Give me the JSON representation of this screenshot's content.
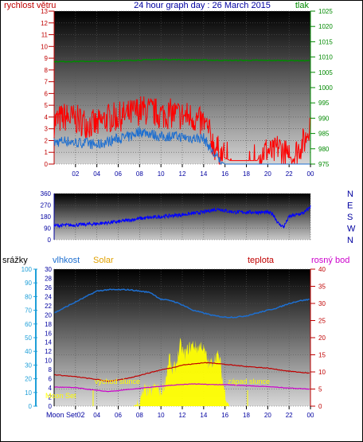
{
  "header": {
    "title": "24 hour graph day : 26 March 2015",
    "left_label": "rychlost větru",
    "right_label": "tlak"
  },
  "colors": {
    "wind_gust": "#ff0000",
    "wind_avg": "#1e6fd0",
    "pressure": "#008a00",
    "direction": "#0000ff",
    "rain": "#1e9fd8",
    "humidity": "#1e6fd0",
    "solar": "#ffff00",
    "temperature": "#c00000",
    "dewpoint": "#cc00cc",
    "moon": "#ffff00"
  },
  "chart_data": [
    {
      "type": "line",
      "id": "wind-pressure",
      "x_ticks": [
        "02",
        "04",
        "06",
        "08",
        "10",
        "12",
        "14",
        "16",
        "18",
        "20",
        "22",
        "00"
      ],
      "y_left": {
        "label": "rychlost větru",
        "range": [
          0,
          13
        ],
        "ticks": [
          "0",
          "1",
          "2",
          "3",
          "4",
          "5",
          "6",
          "7",
          "8",
          "9",
          "10",
          "11",
          "12",
          "13"
        ]
      },
      "y_right": {
        "label": "tlak",
        "range": [
          975,
          1025
        ],
        "ticks": [
          "975",
          "980",
          "985",
          "990",
          "995",
          "1000",
          "1005",
          "1010",
          "1015",
          "1020",
          "1025"
        ]
      },
      "x_range": [
        0,
        24
      ],
      "series": [
        {
          "name": "gust",
          "axis": "left",
          "values": [
            [
              0,
              3.6
            ],
            [
              1,
              4.0
            ],
            [
              2,
              3.8
            ],
            [
              3,
              3.5
            ],
            [
              4,
              3.3
            ],
            [
              5,
              3.9
            ],
            [
              6,
              4.0
            ],
            [
              7,
              4.2
            ],
            [
              8,
              4.6
            ],
            [
              9,
              4.5
            ],
            [
              10,
              4.2
            ],
            [
              11,
              4.3
            ],
            [
              12,
              4.1
            ],
            [
              13,
              4.0
            ],
            [
              13.5,
              3.6
            ],
            [
              14,
              3.5
            ],
            [
              14.5,
              2.7
            ],
            [
              15,
              1.5
            ],
            [
              15.5,
              1.0
            ],
            [
              16,
              0.5
            ],
            [
              16.5,
              0.3
            ],
            [
              17,
              0.3
            ],
            [
              18,
              0.3
            ],
            [
              19,
              0.3
            ],
            [
              19.5,
              1.0
            ],
            [
              20,
              1.2
            ],
            [
              20.5,
              0.8
            ],
            [
              21,
              1.5
            ],
            [
              21.5,
              1.0
            ],
            [
              22,
              0.5
            ],
            [
              22.5,
              0.8
            ],
            [
              23,
              1.5
            ],
            [
              23.5,
              2.0
            ],
            [
              24,
              3.8
            ]
          ]
        },
        {
          "name": "average",
          "axis": "left",
          "values": [
            [
              0,
              1.8
            ],
            [
              1,
              2.0
            ],
            [
              2,
              1.8
            ],
            [
              3,
              1.8
            ],
            [
              4,
              1.6
            ],
            [
              5,
              1.9
            ],
            [
              6,
              2.2
            ],
            [
              7,
              2.3
            ],
            [
              8,
              2.8
            ],
            [
              9,
              2.6
            ],
            [
              10,
              2.3
            ],
            [
              11,
              2.4
            ],
            [
              12,
              2.3
            ],
            [
              13,
              2.2
            ],
            [
              14,
              2.2
            ],
            [
              14.5,
              1.5
            ],
            [
              15,
              0.8
            ],
            [
              15.5,
              0.3
            ],
            [
              16,
              0
            ],
            [
              20,
              0
            ],
            [
              24,
              0
            ]
          ]
        },
        {
          "name": "pressure",
          "axis": "right",
          "values": [
            [
              0,
              1008.5
            ],
            [
              4,
              1008.6
            ],
            [
              8,
              1009.0
            ],
            [
              10,
              1009.2
            ],
            [
              12,
              1009.1
            ],
            [
              14,
              1009.0
            ],
            [
              16,
              1008.9
            ],
            [
              20,
              1008.9
            ],
            [
              24,
              1008.8
            ]
          ]
        }
      ]
    },
    {
      "type": "scatter",
      "id": "wind-direction",
      "x_range": [
        0,
        24
      ],
      "y_range": [
        0,
        360
      ],
      "y_ticks": [
        "0",
        "90",
        "180",
        "270",
        "360"
      ],
      "right_ticks": [
        "N",
        "W",
        "S",
        "E",
        "N"
      ],
      "series": [
        {
          "name": "direction",
          "values": [
            [
              0,
              110
            ],
            [
              2,
              115
            ],
            [
              4,
              125
            ],
            [
              6,
              140
            ],
            [
              8,
              165
            ],
            [
              10,
              180
            ],
            [
              12,
              195
            ],
            [
              14,
              215
            ],
            [
              15,
              235
            ],
            [
              15.5,
              240
            ],
            [
              16,
              225
            ],
            [
              17,
              215
            ],
            [
              18,
              215
            ],
            [
              20,
              212
            ],
            [
              20.5,
              200
            ],
            [
              21,
              125
            ],
            [
              21.5,
              100
            ],
            [
              22,
              180
            ],
            [
              23,
              200
            ],
            [
              23.5,
              215
            ],
            [
              24,
              260
            ]
          ]
        }
      ]
    },
    {
      "type": "line",
      "id": "climate",
      "x_ticks": [
        "02",
        "04",
        "06",
        "08",
        "10",
        "12",
        "14",
        "16",
        "18",
        "20",
        "22",
        "00"
      ],
      "x_range": [
        0,
        24
      ],
      "axis_labels": {
        "rain": "srážky",
        "humidity": "vlhkost",
        "solar": "Solar",
        "temperature": "teplota",
        "dewpoint": "rosný bod"
      },
      "y_rain": {
        "range": [
          0,
          100
        ],
        "ticks": [
          "0",
          "10",
          "20",
          "30",
          "40",
          "50",
          "60",
          "70",
          "80",
          "90",
          "100"
        ]
      },
      "y_humidity": {
        "range": [
          0,
          30
        ],
        "ticks": [
          "0",
          "2",
          "4",
          "6",
          "8",
          "10",
          "12",
          "14",
          "16",
          "18",
          "20",
          "22",
          "24",
          "26",
          "28",
          "30"
        ]
      },
      "y_temp": {
        "range": [
          0,
          40
        ],
        "ticks": [
          "0",
          "5",
          "10",
          "15",
          "20",
          "25",
          "30",
          "35",
          "40"
        ]
      },
      "annotations": {
        "sunrise": "východ slunce",
        "sunset": "západ slunce",
        "moon_set": "Moon Set",
        "moon_set_bottom": "Moon Set02"
      },
      "series": [
        {
          "name": "humidity",
          "axis": "rain",
          "values": [
            [
              0,
              68
            ],
            [
              1,
              72
            ],
            [
              2,
              76
            ],
            [
              3,
              80
            ],
            [
              4,
              84
            ],
            [
              5,
              85
            ],
            [
              6,
              85
            ],
            [
              7,
              85
            ],
            [
              8,
              84
            ],
            [
              9,
              83
            ],
            [
              10,
              78
            ],
            [
              11,
              77
            ],
            [
              12,
              74
            ],
            [
              13,
              70
            ],
            [
              14,
              68
            ],
            [
              15,
              66
            ],
            [
              16,
              65
            ],
            [
              17,
              65
            ],
            [
              18,
              66
            ],
            [
              19,
              68
            ],
            [
              20,
              70
            ],
            [
              21,
              72
            ],
            [
              22,
              75
            ],
            [
              23,
              77
            ],
            [
              24,
              78
            ]
          ]
        },
        {
          "name": "temperature",
          "axis": "temp",
          "values": [
            [
              0,
              9.2
            ],
            [
              2,
              8.6
            ],
            [
              4,
              7.8
            ],
            [
              5,
              7.3
            ],
            [
              6,
              7.6
            ],
            [
              7,
              8.2
            ],
            [
              8,
              9.0
            ],
            [
              9,
              9.8
            ],
            [
              10,
              10.6
            ],
            [
              11,
              11.2
            ],
            [
              12,
              12.0
            ],
            [
              13,
              12.3
            ],
            [
              14,
              12.7
            ],
            [
              15,
              12.6
            ],
            [
              16,
              12.2
            ],
            [
              17,
              11.9
            ],
            [
              18,
              11.6
            ],
            [
              20,
              11.1
            ],
            [
              22,
              10.2
            ],
            [
              24,
              9.6
            ]
          ]
        },
        {
          "name": "dewpoint",
          "axis": "temp",
          "values": [
            [
              0,
              5.6
            ],
            [
              2,
              5.4
            ],
            [
              4,
              4.6
            ],
            [
              5,
              4.3
            ],
            [
              6,
              4.5
            ],
            [
              7,
              4.9
            ],
            [
              8,
              5.2
            ],
            [
              9,
              5.5
            ],
            [
              10,
              5.8
            ],
            [
              11,
              6.1
            ],
            [
              12,
              6.3
            ],
            [
              13,
              6.5
            ],
            [
              14,
              6.4
            ],
            [
              15,
              6.3
            ],
            [
              16,
              6.3
            ],
            [
              18,
              6.0
            ],
            [
              20,
              5.7
            ],
            [
              22,
              5.3
            ],
            [
              24,
              5.0
            ]
          ]
        },
        {
          "name": "solar",
          "axis": "temp",
          "values": [
            [
              0,
              0
            ],
            [
              7.4,
              0
            ],
            [
              8,
              1
            ],
            [
              8.5,
              5
            ],
            [
              9,
              4
            ],
            [
              9.5,
              6
            ],
            [
              10,
              4
            ],
            [
              10.4,
              7
            ],
            [
              10.8,
              15
            ],
            [
              11,
              10
            ],
            [
              11.4,
              12
            ],
            [
              11.8,
              18
            ],
            [
              12.2,
              15
            ],
            [
              12.6,
              17
            ],
            [
              13,
              18
            ],
            [
              13.4,
              17
            ],
            [
              13.8,
              18
            ],
            [
              14.2,
              15
            ],
            [
              14.5,
              12
            ],
            [
              14.8,
              13
            ],
            [
              15.2,
              15
            ],
            [
              15.5,
              14
            ],
            [
              15.8,
              7
            ],
            [
              16,
              4
            ],
            [
              16.4,
              0
            ],
            [
              24,
              0
            ]
          ]
        }
      ]
    }
  ]
}
